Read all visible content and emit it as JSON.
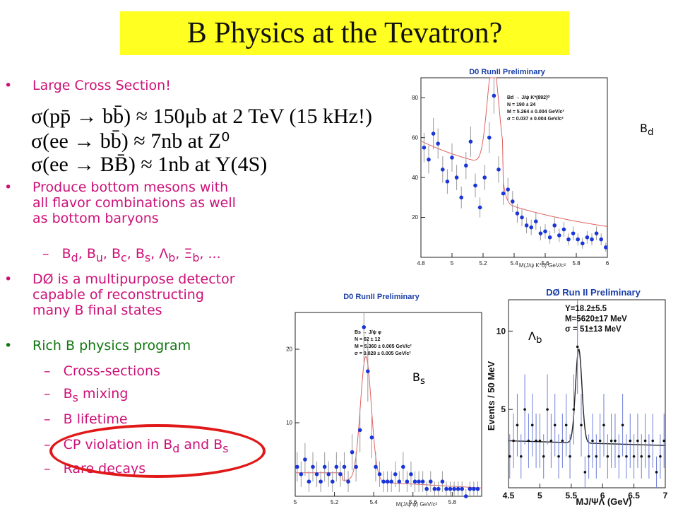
{
  "title": "B Physics at the Tevatron?",
  "bullets": [
    {
      "text": "Large Cross Section!"
    },
    {
      "lines": [
        "Produce bottom mesons with",
        "all flavor combinations as well",
        "as bottom baryons"
      ]
    },
    {
      "lines": [
        "DØ is a multipurpose detector",
        "capable of reconstructing",
        "many B final states"
      ]
    },
    {
      "text": "Rich B physics program"
    }
  ],
  "cross_sections": [
    {
      "lhs": "σ(pp̄ → bb̄)",
      "rhs": "≈ 150μb at 2 TeV (15 kHz!)"
    },
    {
      "lhs": "σ(ee → bb̄)",
      "rhs": "≈ 7nb at Z⁰"
    },
    {
      "lhs": "σ(ee → BB̄)",
      "rhs": "≈ 1nb at Υ(4S)"
    }
  ],
  "meson_list": {
    "dash": "–",
    "parts": [
      "B",
      "d",
      ", B",
      "u",
      ", B",
      "c",
      ", B",
      "s",
      ", Λ",
      "b",
      ", Ξ",
      "b",
      ", ..."
    ]
  },
  "program_items": [
    {
      "parts": [
        "Cross-sections"
      ]
    },
    {
      "parts": [
        "B",
        "s",
        " mixing"
      ]
    },
    {
      "parts": [
        "B lifetime"
      ]
    },
    {
      "parts": [
        "CP violation in B",
        "d",
        " and B",
        "s"
      ]
    },
    {
      "parts": [
        "Rare decays"
      ]
    }
  ],
  "plot_labels": {
    "bd": [
      "B",
      "d"
    ],
    "bs": [
      "B",
      "s"
    ],
    "lb": [
      "Λ",
      "b"
    ]
  },
  "chart_data": [
    {
      "type": "scatter",
      "title": "D0 RunII Preliminary",
      "xlabel": "M(J/ψ K*0) GeV/c²",
      "ylabel": "",
      "xlim": [
        4.8,
        6.0
      ],
      "ylim": [
        0,
        90
      ],
      "x_ticks": [
        4.8,
        5,
        5.2,
        5.4,
        5.6,
        5.8,
        6
      ],
      "y_ticks": [
        20,
        40,
        60,
        80
      ],
      "annotation": [
        "Bd → J/ψ K*(892)⁰",
        "N = 190 ± 24",
        "M = 5.264 ± 0.004 GeV/c²",
        "σ = 0.037 ± 0.004 GeV/c²"
      ],
      "series": [
        {
          "x": [
            4.82,
            4.85,
            4.88,
            4.91,
            4.94,
            4.97,
            5.0,
            5.03,
            5.06,
            5.09,
            5.12,
            5.15,
            5.18,
            5.21,
            5.24,
            5.27,
            5.3,
            5.33,
            5.36,
            5.39,
            5.42,
            5.45,
            5.48,
            5.51,
            5.54,
            5.57,
            5.6,
            5.63,
            5.66,
            5.69,
            5.72,
            5.75,
            5.78,
            5.81,
            5.84,
            5.87,
            5.9,
            5.93,
            5.96,
            5.99
          ],
          "y": [
            55,
            49,
            62,
            57,
            44,
            38,
            50,
            40,
            30,
            46,
            58,
            36,
            25,
            40,
            60,
            81,
            44,
            32,
            34,
            28,
            22,
            20,
            16,
            15,
            18,
            12,
            13,
            10,
            16,
            11,
            14,
            9,
            12,
            9,
            7,
            10,
            9,
            12,
            9,
            5
          ]
        }
      ]
    },
    {
      "type": "scatter",
      "title": "D0 RunII Preliminary",
      "xlabel": "M(J/ψ φ) GeV/c²",
      "ylabel": "",
      "xlim": [
        5.0,
        5.95
      ],
      "ylim": [
        0,
        25
      ],
      "x_ticks": [
        5,
        5.2,
        5.4,
        5.6,
        5.8
      ],
      "y_ticks": [
        10,
        20
      ],
      "annotation": [
        "Bs → J/ψ φ",
        "N = 62 ± 12",
        "M = 5.360 ± 0.005 GeV/c²",
        "σ = 0.028 ± 0.005 GeV/c²"
      ],
      "series": [
        {
          "x": [
            5.01,
            5.03,
            5.05,
            5.07,
            5.09,
            5.11,
            5.13,
            5.15,
            5.17,
            5.19,
            5.21,
            5.23,
            5.25,
            5.27,
            5.29,
            5.31,
            5.33,
            5.35,
            5.37,
            5.39,
            5.41,
            5.43,
            5.45,
            5.47,
            5.49,
            5.51,
            5.53,
            5.55,
            5.57,
            5.59,
            5.61,
            5.63,
            5.65,
            5.67,
            5.69,
            5.71,
            5.73,
            5.75,
            5.77,
            5.79,
            5.81,
            5.83,
            5.85,
            5.87,
            5.89,
            5.91,
            5.93
          ],
          "y": [
            4,
            3,
            5,
            2,
            4,
            3,
            2,
            4,
            3,
            2,
            4,
            3,
            4,
            2,
            6,
            4,
            9,
            23,
            17,
            8,
            4,
            3,
            2,
            2,
            2,
            3,
            2,
            4,
            2,
            3,
            2,
            2,
            2,
            1,
            2,
            1,
            1,
            2,
            1,
            1,
            1,
            1,
            1,
            0,
            1,
            1,
            1
          ]
        }
      ]
    },
    {
      "type": "scatter",
      "title": "DØ Run II Preliminary",
      "xlabel": "MJ/ΨΛ (GeV)",
      "ylabel": "Events / 50 MeV",
      "xlim": [
        4.5,
        7.0
      ],
      "ylim": [
        0,
        12
      ],
      "x_ticks": [
        4.5,
        5,
        5.5,
        6,
        6.5,
        7
      ],
      "y_ticks": [
        5,
        10
      ],
      "annotation": [
        "Y=18.2±5.5",
        "M=5620±17 MeV",
        "σ = 51±13 MeV"
      ],
      "series": [
        {
          "x": [
            4.52,
            4.58,
            4.64,
            4.7,
            4.76,
            4.82,
            4.88,
            4.94,
            5.0,
            5.06,
            5.12,
            5.18,
            5.24,
            5.3,
            5.36,
            5.42,
            5.48,
            5.54,
            5.6,
            5.66,
            5.72,
            5.78,
            5.84,
            5.9,
            5.96,
            6.02,
            6.08,
            6.14,
            6.2,
            6.26,
            6.32,
            6.38,
            6.44,
            6.5,
            6.56,
            6.62,
            6.68,
            6.74,
            6.8,
            6.86,
            6.92,
            6.98
          ],
          "y": [
            2,
            3,
            4,
            2,
            5,
            3,
            4,
            3,
            3,
            2,
            5,
            3,
            4,
            2,
            3,
            4,
            2,
            5,
            9,
            4,
            1,
            2,
            3,
            2,
            3,
            4,
            2,
            3,
            3,
            2,
            4,
            2,
            3,
            2,
            3,
            2,
            3,
            2,
            3,
            1,
            2,
            3
          ]
        }
      ]
    }
  ]
}
